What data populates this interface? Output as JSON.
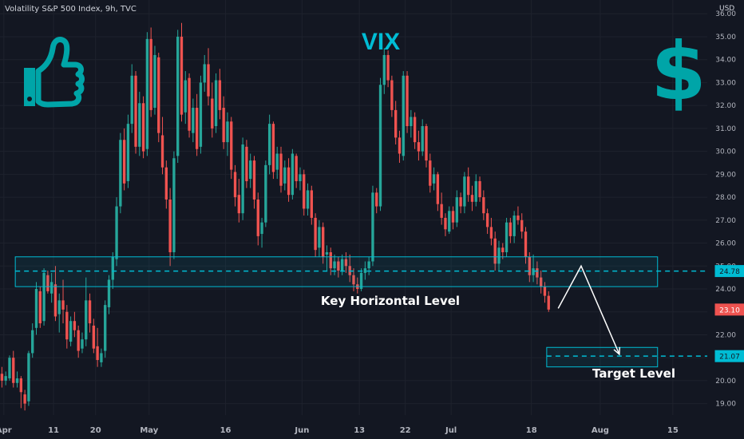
{
  "header": {
    "title": "Volatility S&P 500 Index, 9h, TVC",
    "currency": "USD"
  },
  "icons": {
    "left": "thumbs-up-icon",
    "right": "dollar-sign-icon"
  },
  "colors": {
    "background": "#131722",
    "up": "#26a69a",
    "down": "#ef5350",
    "accent": "#00bcd4",
    "annotation": "#ffffff",
    "axis_text": "#b2b5be"
  },
  "chart_data": {
    "type": "candlestick",
    "title": "VIX",
    "ylim": [
      18.5,
      36.6
    ],
    "y_ticks": [
      19,
      20,
      21,
      22,
      23,
      24,
      25,
      26,
      27,
      28,
      29,
      30,
      31,
      32,
      33,
      34,
      35,
      36
    ],
    "y_tick_labels": [
      "19.00",
      "20.00",
      "21.00",
      "22.00",
      "23.00",
      "24.00",
      "25.00",
      "26.00",
      "27.00",
      "28.00",
      "29.00",
      "30.00",
      "31.00",
      "32.00",
      "33.00",
      "34.00",
      "35.00",
      "36.00"
    ],
    "x_ticks": [
      {
        "label": "Apr",
        "bar": 1
      },
      {
        "label": "11",
        "bar": 14
      },
      {
        "label": "20",
        "bar": 25
      },
      {
        "label": "May",
        "bar": 39
      },
      {
        "label": "16",
        "bar": 59
      },
      {
        "label": "Jun",
        "bar": 79
      },
      {
        "label": "13",
        "bar": 94
      },
      {
        "label": "22",
        "bar": 106
      },
      {
        "label": "Jul",
        "bar": 118
      },
      {
        "label": "18",
        "bar": 139
      },
      {
        "label": "Aug",
        "bar": 157
      },
      {
        "label": "15",
        "bar": 176
      }
    ],
    "x_bars_span": [
      0,
      185
    ],
    "price_labels": [
      {
        "value": 24.78,
        "text": "24.78",
        "style": "accent"
      },
      {
        "value": 23.1,
        "text": "23.10",
        "style": "down"
      },
      {
        "value": 21.07,
        "text": "21.07",
        "style": "accent"
      }
    ],
    "zones": [
      {
        "name": "key-level",
        "bar_from": 4,
        "bar_to": 172,
        "y_from": 24.1,
        "y_to": 25.4,
        "line": 24.78,
        "label": "Key Horizontal Level"
      },
      {
        "name": "target-level",
        "bar_from": 143,
        "bar_to": 172,
        "y_from": 20.6,
        "y_to": 21.45,
        "line": 21.07,
        "label": "Target Level"
      }
    ],
    "projection": [
      [
        146,
        23.15
      ],
      [
        152,
        25.0
      ],
      [
        162,
        21.15
      ]
    ],
    "ohlc": [
      [
        20.3,
        20.6,
        19.7,
        20.0
      ],
      [
        20.0,
        20.4,
        19.8,
        20.2
      ],
      [
        20.1,
        21.1,
        20.0,
        21.0
      ],
      [
        21.0,
        21.3,
        19.7,
        19.9
      ],
      [
        19.9,
        20.4,
        19.7,
        20.1
      ],
      [
        20.1,
        20.2,
        18.8,
        19.5
      ],
      [
        19.4,
        19.6,
        18.7,
        19.0
      ],
      [
        19.1,
        21.3,
        18.9,
        21.2
      ],
      [
        21.2,
        22.5,
        21.0,
        22.2
      ],
      [
        22.3,
        24.3,
        22.0,
        24.0
      ],
      [
        23.9,
        24.1,
        22.3,
        22.5
      ],
      [
        22.6,
        24.9,
        22.4,
        24.7
      ],
      [
        24.6,
        24.8,
        23.8,
        23.9
      ],
      [
        23.8,
        24.7,
        23.4,
        24.3
      ],
      [
        24.2,
        25.0,
        22.6,
        22.8
      ],
      [
        22.9,
        23.8,
        22.1,
        23.5
      ],
      [
        23.5,
        24.4,
        22.5,
        23.1
      ],
      [
        23.0,
        23.3,
        21.4,
        21.8
      ],
      [
        21.7,
        22.8,
        21.5,
        22.6
      ],
      [
        22.6,
        23.0,
        21.9,
        22.2
      ],
      [
        22.2,
        22.4,
        21.0,
        21.3
      ],
      [
        21.4,
        22.1,
        21.2,
        21.8
      ],
      [
        21.8,
        24.5,
        21.5,
        23.5
      ],
      [
        23.5,
        23.8,
        22.1,
        22.5
      ],
      [
        22.4,
        22.7,
        21.2,
        21.4
      ],
      [
        21.5,
        22.3,
        20.6,
        20.9
      ],
      [
        20.8,
        21.4,
        20.6,
        21.2
      ],
      [
        21.3,
        23.5,
        21.0,
        23.3
      ],
      [
        23.2,
        24.6,
        22.9,
        24.4
      ],
      [
        24.4,
        25.6,
        24.0,
        25.4
      ],
      [
        25.3,
        28.0,
        25.0,
        27.6
      ],
      [
        27.6,
        30.8,
        27.3,
        30.5
      ],
      [
        30.5,
        31.0,
        28.3,
        28.6
      ],
      [
        28.7,
        31.6,
        28.4,
        31.2
      ],
      [
        31.2,
        33.8,
        30.8,
        33.3
      ],
      [
        33.3,
        33.5,
        29.9,
        30.2
      ],
      [
        30.2,
        32.6,
        29.8,
        32.1
      ],
      [
        32.1,
        32.4,
        29.7,
        30.0
      ],
      [
        30.1,
        35.2,
        29.8,
        34.9
      ],
      [
        34.9,
        35.4,
        31.5,
        31.8
      ],
      [
        31.9,
        34.6,
        31.6,
        34.2
      ],
      [
        34.1,
        34.3,
        30.4,
        30.8
      ],
      [
        30.7,
        31.5,
        29.0,
        29.3
      ],
      [
        29.3,
        29.6,
        27.5,
        27.9
      ],
      [
        27.9,
        28.4,
        25.0,
        25.6
      ],
      [
        25.6,
        30.0,
        25.3,
        29.7
      ],
      [
        29.8,
        35.3,
        29.5,
        35.0
      ],
      [
        35.0,
        35.6,
        31.3,
        31.6
      ],
      [
        31.7,
        33.5,
        31.2,
        33.1
      ],
      [
        33.2,
        33.4,
        30.6,
        30.9
      ],
      [
        30.8,
        32.3,
        30.4,
        31.9
      ],
      [
        31.9,
        32.5,
        29.8,
        30.1
      ],
      [
        30.2,
        33.3,
        29.9,
        33.0
      ],
      [
        33.0,
        34.2,
        32.6,
        33.8
      ],
      [
        33.8,
        34.5,
        32.0,
        32.4
      ],
      [
        32.3,
        33.0,
        30.6,
        31.0
      ],
      [
        31.1,
        33.4,
        30.8,
        33.1
      ],
      [
        33.1,
        33.6,
        31.4,
        31.8
      ],
      [
        31.9,
        32.4,
        30.1,
        30.4
      ],
      [
        30.4,
        31.7,
        29.8,
        31.3
      ],
      [
        31.3,
        31.5,
        28.8,
        29.2
      ],
      [
        29.1,
        29.4,
        27.6,
        28.0
      ],
      [
        28.1,
        28.8,
        26.9,
        27.3
      ],
      [
        27.3,
        30.6,
        27.0,
        30.3
      ],
      [
        30.2,
        30.5,
        28.4,
        28.7
      ],
      [
        28.8,
        29.9,
        28.4,
        29.6
      ],
      [
        29.6,
        29.8,
        27.5,
        27.9
      ],
      [
        27.9,
        28.2,
        25.9,
        26.3
      ],
      [
        26.4,
        27.1,
        25.8,
        26.9
      ],
      [
        26.9,
        29.6,
        26.7,
        29.4
      ],
      [
        29.4,
        31.6,
        29.0,
        31.2
      ],
      [
        31.2,
        31.3,
        28.8,
        29.1
      ],
      [
        29.2,
        30.2,
        28.8,
        29.9
      ],
      [
        29.9,
        30.2,
        28.2,
        28.5
      ],
      [
        28.6,
        29.6,
        28.3,
        29.3
      ],
      [
        29.3,
        29.7,
        27.8,
        28.1
      ],
      [
        28.1,
        30.1,
        27.9,
        29.9
      ],
      [
        29.8,
        29.9,
        28.4,
        28.7
      ],
      [
        28.7,
        29.3,
        28.3,
        29.0
      ],
      [
        29.0,
        29.2,
        27.2,
        27.5
      ],
      [
        27.5,
        28.6,
        27.2,
        28.3
      ],
      [
        28.3,
        28.5,
        26.8,
        27.1
      ],
      [
        27.1,
        27.3,
        25.4,
        25.7
      ],
      [
        25.8,
        27.0,
        25.4,
        26.7
      ],
      [
        26.7,
        26.9,
        25.1,
        25.4
      ],
      [
        25.5,
        25.9,
        24.8,
        25.6
      ],
      [
        25.6,
        25.8,
        24.6,
        24.9
      ],
      [
        24.9,
        25.5,
        24.6,
        25.2
      ],
      [
        25.2,
        25.4,
        24.5,
        24.8
      ],
      [
        24.8,
        25.5,
        24.6,
        25.3
      ],
      [
        25.3,
        25.6,
        24.7,
        25.0
      ],
      [
        25.0,
        25.5,
        24.3,
        24.6
      ],
      [
        24.6,
        24.9,
        23.9,
        24.2
      ],
      [
        24.2,
        24.5,
        23.8,
        24.0
      ],
      [
        24.0,
        24.9,
        23.9,
        24.7
      ],
      [
        24.7,
        25.2,
        24.4,
        24.9
      ],
      [
        24.9,
        25.4,
        24.6,
        25.2
      ],
      [
        25.2,
        28.5,
        25.0,
        28.2
      ],
      [
        28.2,
        28.4,
        27.3,
        27.6
      ],
      [
        27.6,
        33.2,
        27.4,
        32.9
      ],
      [
        32.9,
        34.5,
        32.5,
        34.2
      ],
      [
        34.2,
        34.4,
        32.8,
        33.1
      ],
      [
        33.1,
        33.3,
        31.5,
        31.8
      ],
      [
        31.8,
        32.2,
        30.3,
        30.6
      ],
      [
        30.6,
        30.9,
        29.5,
        29.9
      ],
      [
        29.8,
        33.5,
        29.6,
        33.3
      ],
      [
        33.3,
        33.5,
        30.8,
        31.1
      ],
      [
        31.1,
        31.8,
        30.6,
        31.5
      ],
      [
        31.5,
        31.7,
        30.1,
        30.4
      ],
      [
        30.4,
        30.9,
        29.6,
        30.0
      ],
      [
        30.0,
        31.4,
        29.8,
        31.1
      ],
      [
        31.1,
        31.2,
        29.3,
        29.6
      ],
      [
        29.6,
        29.9,
        28.2,
        28.5
      ],
      [
        28.6,
        29.3,
        28.3,
        29.0
      ],
      [
        29.0,
        29.1,
        27.4,
        27.7
      ],
      [
        27.7,
        28.2,
        26.8,
        27.1
      ],
      [
        27.1,
        27.3,
        26.3,
        26.6
      ],
      [
        26.5,
        27.6,
        26.4,
        27.4
      ],
      [
        27.4,
        27.6,
        26.6,
        26.9
      ],
      [
        26.9,
        28.3,
        26.7,
        28.0
      ],
      [
        28.0,
        28.2,
        27.3,
        27.6
      ],
      [
        27.6,
        29.1,
        27.3,
        28.9
      ],
      [
        28.9,
        29.3,
        27.8,
        28.1
      ],
      [
        28.1,
        28.5,
        27.4,
        27.8
      ],
      [
        27.8,
        29.0,
        27.6,
        28.7
      ],
      [
        28.7,
        28.9,
        27.8,
        28.0
      ],
      [
        28.0,
        28.3,
        27.0,
        27.3
      ],
      [
        27.3,
        27.5,
        26.4,
        26.7
      ],
      [
        26.7,
        27.1,
        25.9,
        26.2
      ],
      [
        26.2,
        26.5,
        24.8,
        25.1
      ],
      [
        25.1,
        26.1,
        24.8,
        25.8
      ],
      [
        25.8,
        26.0,
        25.3,
        25.6
      ],
      [
        25.6,
        27.1,
        25.4,
        26.9
      ],
      [
        26.9,
        27.1,
        26.0,
        26.3
      ],
      [
        26.3,
        27.4,
        26.0,
        27.2
      ],
      [
        27.2,
        27.6,
        26.8,
        27.0
      ],
      [
        27.0,
        27.3,
        26.2,
        26.5
      ],
      [
        26.5,
        26.7,
        25.1,
        25.4
      ],
      [
        25.4,
        25.6,
        24.3,
        24.6
      ],
      [
        24.6,
        25.5,
        24.3,
        24.9
      ],
      [
        24.9,
        25.2,
        24.2,
        24.5
      ],
      [
        24.5,
        24.8,
        23.8,
        24.1
      ],
      [
        24.1,
        24.3,
        23.4,
        23.7
      ],
      [
        23.7,
        23.9,
        23.0,
        23.1
      ]
    ]
  },
  "annotations": {
    "key_level_label": "Key Horizontal Level",
    "target_label": "Target Level"
  }
}
